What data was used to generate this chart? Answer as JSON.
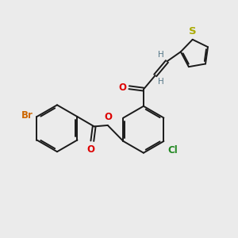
{
  "bg_color": "#ebebeb",
  "bond_color": "#1a1a1a",
  "bond_width": 1.4,
  "atoms": {
    "Br": {
      "color": "#cc6600",
      "fontsize": 8.5
    },
    "O": {
      "color": "#dd0000",
      "fontsize": 8.5
    },
    "Cl": {
      "color": "#228822",
      "fontsize": 8.5
    },
    "S": {
      "color": "#aaaa00",
      "fontsize": 9.5
    },
    "H": {
      "color": "#557788",
      "fontsize": 7.5
    }
  },
  "xlim": [
    0,
    10
  ],
  "ylim": [
    1.5,
    9.5
  ]
}
